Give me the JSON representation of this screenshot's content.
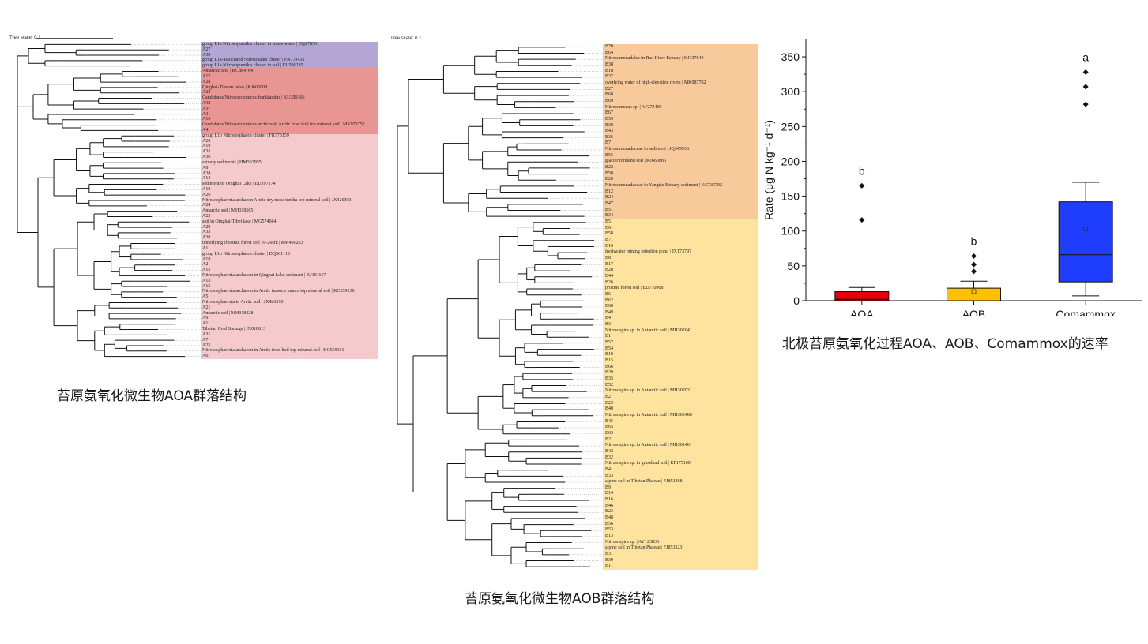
{
  "aoa_panel": {
    "tree_scale": "Tree scale: 0.1",
    "caption": "苔原氨氧化微生物AOA群落结构",
    "band_colors": [
      "#b3a6d4",
      "#e99594",
      "#f5cacc"
    ],
    "tips": [
      "group I.1a Nitrosopumilus cluster in waste water | DQ278501",
      "A27",
      "A30",
      "group I.1a-associated Nitrosotalea cluster | FN773432",
      "group I.1a Nitrosopumilus cluster in soil | EU590235",
      "Antarctic Soil | KC884764",
      "A17",
      "A28",
      "Qinghai-Tibetan lakes | KJ606908",
      "A22",
      "Candidatus Nitrosocosmicus franklandus | KU290366",
      "A32",
      "A37",
      "A3",
      "A16",
      "Candidatus Nitrosocosmicus arcticus in Arctic frost boil top mineral soil | MK978752",
      "A4",
      "group I.1b Nitrososphaera cluster | FR773159",
      "A20",
      "A19",
      "A35",
      "A36",
      "estuary sediments | HM363955",
      "A8",
      "A34",
      "A14",
      "sediment of Qinghai Lake | EU197174",
      "A10",
      "A26",
      "Nitrososphaerota archaeon Arctic dry moss tundra top mineral soil | JX426393",
      "A24",
      "Antarctic soil | MH318565",
      "A23",
      "soil in Qinghai-Tibet lake | MG574664",
      "A29",
      "A33",
      "A38",
      "underlying chestnut forest soil 10-20cm | KM460263",
      "A1",
      "group I.1b Nitrososphaera cluster | DQ501118",
      "A18",
      "A2",
      "A12",
      "Nitrososphaerota archaeon in Qinghai Lake sediment | KJ191167",
      "A13",
      "A15",
      "Nitrososphaerota archaeon in Arctic tussock tundra top mineral soil | KC559130",
      "A5",
      "Nitrososphaerota in Arctic soil | JX426510",
      "A21",
      "Antarctic soil | MH318428",
      "A9",
      "A11",
      "Tibetan Cold Springs | JX018813",
      "A31",
      "A7",
      "A25",
      "Nitrososphaerota archaeon in Arctic frost boil top mineral soil | KC559161",
      "A6"
    ]
  },
  "aob_panel": {
    "tree_scale": "Tree scale: 0.1",
    "caption": "苔原氨氧化微生物AOB群落结构",
    "band_colors": [
      "#f8c99b",
      "#fee39e"
    ],
    "tips": [
      "B70",
      "B64",
      "Nitrosomonadales in Rao River Estuary | KJ137840",
      "B38",
      "B18",
      "B37",
      "overlying water of high-elevation rivers | MK987782",
      "B27",
      "B68",
      "B69",
      "Nitrosomonas sp. | AF272409",
      "B67",
      "B59",
      "B30",
      "B43",
      "B36",
      "B7",
      "Nitrosomonadaceae in sediment | JQ345936",
      "B55",
      "glacier foreland soil | KJ660886",
      "B22",
      "B50",
      "B20",
      "Nitrosomonadaceae in Yangtze Estuary sediment | KC735792",
      "B12",
      "B24",
      "B47",
      "B51",
      "B34",
      "B5",
      "B61",
      "B58",
      "B71",
      "B10",
      "freshwater mining retention pond | JX173797",
      "B8",
      "B17",
      "B28",
      "B44",
      "B26",
      "pristine forest soil | EU770908",
      "B6",
      "B62",
      "B60",
      "B49",
      "B4",
      "B3",
      "Nitrosospira sp. in Antarctic soil | MH302041",
      "B1",
      "B57",
      "B54",
      "B19",
      "B15",
      "B66",
      "B29",
      "B35",
      "B52",
      "Nitrosospira sp. in Antarctic soil | MH302031",
      "B2",
      "B25",
      "B40",
      "Nitrosospira sp. in Antarctic soil | MH302486",
      "B45",
      "B65",
      "B63",
      "B21",
      "Nitrosospira sp. in Antarctic soil | MH301461",
      "B42",
      "B32",
      "Nitrosospira sp. in grassland soil | EF175100",
      "B41",
      "B33",
      "alpine soil in Tibetan Plateau | FJ853288",
      "B9",
      "B14",
      "B16",
      "B46",
      "B23",
      "B48",
      "B56",
      "B53",
      "B13",
      "Nitrosospira sp. | AY123836",
      "alpine soil in Tibetan Plateau | FJ853323",
      "B31",
      "B39",
      "B11"
    ]
  },
  "rate_panel": {
    "caption": "北极苔原氨氧化过程AOA、AOB、Comammox的速率",
    "chart_data": {
      "type": "box",
      "title": "",
      "ylabel": "Rate (μg N kg⁻¹ d⁻¹)",
      "ylim": [
        0,
        375
      ],
      "yticks": [
        0,
        50,
        100,
        150,
        200,
        250,
        300,
        350
      ],
      "categories": [
        "AOA",
        "AOB",
        "Comammox"
      ],
      "boxes": [
        {
          "name": "AOA",
          "color": "#e8000b",
          "whisker_low": 0,
          "q1": 0,
          "median": 2,
          "q3": 13,
          "whisker_high": 19,
          "mean": 18,
          "outliers": [
            116,
            165
          ],
          "letter": "b"
        },
        {
          "name": "AOB",
          "color": "#ffc000",
          "whisker_low": 0,
          "q1": 0,
          "median": 4,
          "q3": 18,
          "whisker_high": 28,
          "mean": 13,
          "outliers": [
            42,
            52,
            64
          ],
          "letter": "b"
        },
        {
          "name": "Comammox",
          "color": "#1f3dff",
          "whisker_low": 7,
          "q1": 27,
          "median": 66,
          "q3": 142,
          "whisker_high": 170,
          "mean": 103,
          "outliers": [
            282,
            307,
            328
          ],
          "letter": "a"
        }
      ]
    }
  }
}
